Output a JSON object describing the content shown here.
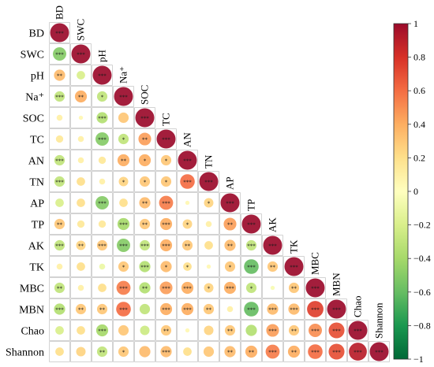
{
  "chart_data": {
    "type": "heatmap",
    "variables": [
      "BD",
      "SWC",
      "pH",
      "Na⁺",
      "SOC",
      "TC",
      "AN",
      "TN",
      "AP",
      "TP",
      "AK",
      "TK",
      "MBC",
      "MBN",
      "Chao",
      "Shannon"
    ],
    "row_labels": [
      "BD",
      "SWC",
      "pH",
      "Na⁺",
      "SOC",
      "TC",
      "AN",
      "TN",
      "AP",
      "TP",
      "AK",
      "TK",
      "MBC",
      "MBN",
      "Chao",
      "Shannon"
    ],
    "col_labels": [
      "BD",
      "SWC",
      "pH",
      "Na⁺",
      "SOC",
      "TC",
      "AN",
      "TN",
      "AP",
      "TP",
      "AK",
      "TK",
      "MBC",
      "MBN",
      "Chao",
      "Shannon"
    ],
    "lower_triangle": [
      [
        1
      ],
      [
        -0.5,
        1
      ],
      [
        0.35,
        -0.2,
        1
      ],
      [
        -0.3,
        0.4,
        -0.3,
        1
      ],
      [
        0.1,
        0.05,
        -0.35,
        0.3,
        1
      ],
      [
        0.15,
        0.1,
        -0.5,
        -0.3,
        0.45,
        1
      ],
      [
        -0.3,
        0.1,
        0.15,
        0.4,
        0.4,
        0.3,
        1
      ],
      [
        -0.3,
        0.2,
        0.1,
        0.25,
        0.3,
        0.3,
        0.6,
        1
      ],
      [
        -0.2,
        0.2,
        -0.5,
        0.2,
        0.35,
        0.55,
        0.05,
        0.25,
        1
      ],
      [
        0.3,
        0.15,
        0.15,
        -0.4,
        0.3,
        0.4,
        0.25,
        0.1,
        0.45,
        1
      ],
      [
        -0.3,
        0.25,
        0.3,
        -0.5,
        -0.3,
        0.4,
        0.3,
        0.2,
        0.35,
        -0.3,
        1
      ],
      [
        0.1,
        0.2,
        -0.1,
        0.3,
        -0.35,
        0.35,
        0.2,
        0.05,
        0.3,
        -0.6,
        0.3,
        1
      ],
      [
        -0.3,
        0.1,
        0.2,
        0.55,
        -0.35,
        0.45,
        0.4,
        0.25,
        0.4,
        -0.3,
        -0.05,
        0.3,
        1
      ],
      [
        -0.35,
        0.3,
        0.3,
        0.6,
        -0.3,
        0.4,
        0.4,
        0.3,
        0.1,
        -0.6,
        0.35,
        0.35,
        0.75,
        1
      ],
      [
        -0.2,
        0.2,
        -0.4,
        0.3,
        -0.25,
        0.3,
        0.05,
        0.25,
        0.3,
        -0.35,
        0.45,
        0.3,
        0.5,
        0.7,
        1
      ],
      [
        0.2,
        0.25,
        -0.3,
        0.3,
        0.35,
        0.35,
        0.2,
        0.3,
        0.35,
        0.4,
        0.55,
        0.4,
        0.6,
        0.7,
        0.9,
        1
      ]
    ],
    "significance": [
      [
        "***"
      ],
      [
        "***",
        "***"
      ],
      [
        "**",
        "",
        "***"
      ],
      [
        "***",
        "**",
        "*",
        "***"
      ],
      [
        "",
        "",
        "***",
        "",
        "***"
      ],
      [
        "",
        "",
        "***",
        "*",
        "**",
        "***"
      ],
      [
        "***",
        "",
        "",
        "**",
        "*",
        "*",
        "***"
      ],
      [
        "***",
        "",
        "",
        "*",
        "*",
        "*",
        "***",
        "***"
      ],
      [
        "",
        "",
        "***",
        "",
        "**",
        "***",
        "",
        "*",
        "***"
      ],
      [
        "**",
        "",
        "",
        "***",
        "**",
        "***",
        "*",
        "",
        "**",
        "***"
      ],
      [
        "***",
        "**",
        "***",
        "***",
        "***",
        "***",
        "**",
        "",
        "**",
        "***",
        "***"
      ],
      [
        "",
        "",
        "",
        "*",
        "***",
        "*",
        "*",
        "",
        "*",
        "***",
        "**",
        "***"
      ],
      [
        "**",
        "",
        "",
        "***",
        "**",
        "***",
        "***",
        "*",
        "***",
        "*",
        "",
        "**",
        "***"
      ],
      [
        "***",
        "**",
        "**",
        "***",
        "",
        "***",
        "***",
        "**",
        "",
        "***",
        "***",
        "***",
        "***",
        "***"
      ],
      [
        "",
        "",
        "***",
        "",
        "",
        "**",
        "",
        "",
        "**",
        "",
        "***",
        "**",
        "***",
        "***",
        "***"
      ],
      [
        "",
        "",
        "**",
        "*",
        "",
        "***",
        "",
        "",
        "**",
        "**",
        "***",
        "**",
        "***",
        "***",
        "***",
        "***"
      ]
    ],
    "colorbar": {
      "range": [
        -1,
        1
      ],
      "ticks": [
        "1",
        "0.8",
        "0.6",
        "0.4",
        "0.2",
        "0",
        "−0.2",
        "−0.4",
        "−0.6",
        "−0.8",
        "−1"
      ],
      "colors": [
        "#9b0b2b",
        "#d73027",
        "#f46d43",
        "#fdae61",
        "#fee08b",
        "#ffffbf",
        "#d9ef8b",
        "#a6d96a",
        "#66bd63",
        "#1a9850",
        "#006837"
      ]
    }
  }
}
